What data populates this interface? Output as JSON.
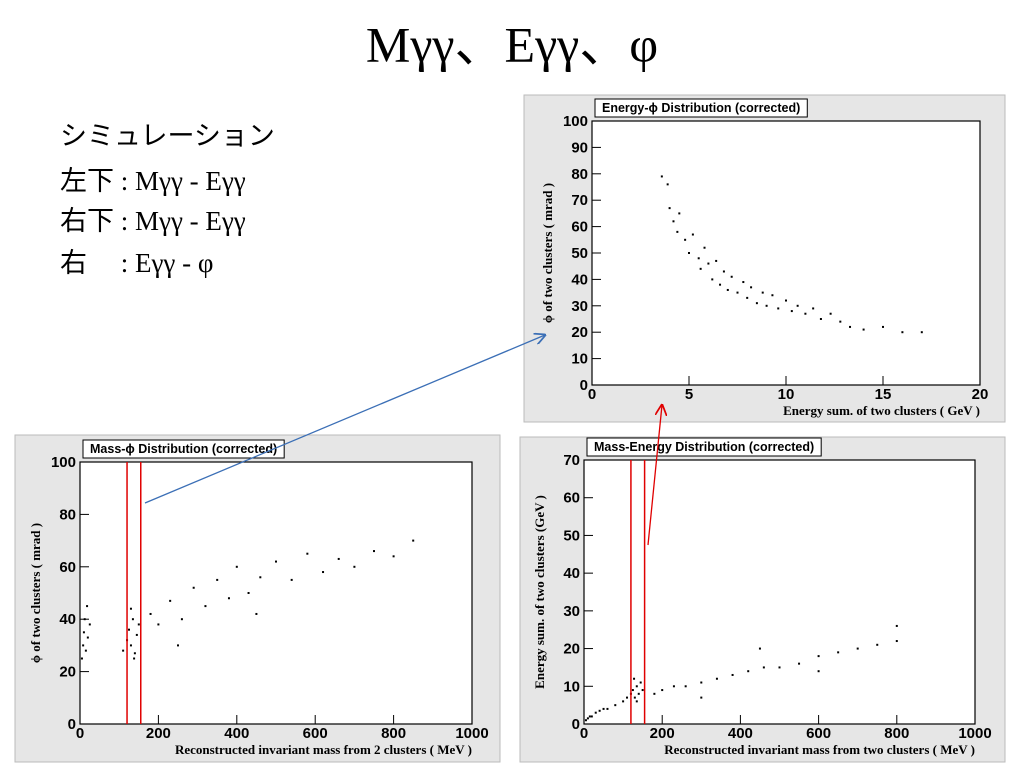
{
  "slide": {
    "title": "Mγγ、Eγγ、φ",
    "notes": [
      "シミュレーション",
      "左下 : Mγγ - Eγγ",
      "右下 : Mγγ - Eγγ",
      "右　 : Eγγ - φ"
    ]
  },
  "chart_data": [
    {
      "type": "scatter",
      "title": "Energy-ϕ Distribution (corrected)",
      "xlabel": "Energy sum. of two clusters ( GeV )",
      "ylabel": "ϕ of two clusters ( mrad )",
      "xlim": [
        0,
        20
      ],
      "xticks": [
        0,
        5,
        10,
        15,
        20
      ],
      "ylim": [
        0,
        100
      ],
      "yticks": [
        0,
        10,
        20,
        30,
        40,
        50,
        60,
        70,
        80,
        90,
        100
      ],
      "color": "#000000",
      "x": [
        3.6,
        3.9,
        4.0,
        4.2,
        4.4,
        4.5,
        4.8,
        5.0,
        5.2,
        5.5,
        5.6,
        5.8,
        6.0,
        6.2,
        6.4,
        6.6,
        6.8,
        7.0,
        7.2,
        7.5,
        7.8,
        8.0,
        8.2,
        8.5,
        8.8,
        9.0,
        9.3,
        9.6,
        10.0,
        10.3,
        10.6,
        11.0,
        11.4,
        11.8,
        12.3,
        12.8,
        13.3,
        14.0,
        15.0,
        16.0,
        17.0
      ],
      "values": [
        79,
        76,
        67,
        62,
        58,
        65,
        55,
        50,
        57,
        48,
        44,
        52,
        46,
        40,
        47,
        38,
        43,
        36,
        41,
        35,
        39,
        33,
        37,
        31,
        35,
        30,
        34,
        29,
        32,
        28,
        30,
        27,
        29,
        25,
        27,
        24,
        22,
        21,
        22,
        20,
        20
      ]
    },
    {
      "type": "scatter",
      "title": "Mass-ϕ Distribution (corrected)",
      "xlabel": "Reconstructed invariant mass from 2 clusters ( MeV )",
      "ylabel": "ϕ of two clusters ( mrad )",
      "xlim": [
        0,
        1000
      ],
      "xticks": [
        0,
        200,
        400,
        600,
        800,
        1000
      ],
      "ylim": [
        0,
        100
      ],
      "yticks": [
        0,
        20,
        40,
        60,
        80,
        100
      ],
      "color": "#000000",
      "vlines": [
        120,
        155
      ],
      "vline_color": "#e00000",
      "x": [
        5,
        8,
        10,
        12,
        15,
        18,
        20,
        25,
        110,
        120,
        125,
        130,
        135,
        140,
        145,
        150,
        130,
        138,
        180,
        200,
        230,
        260,
        290,
        320,
        350,
        380,
        400,
        430,
        460,
        500,
        540,
        580,
        620,
        660,
        700,
        750,
        800,
        850,
        250,
        450
      ],
      "values": [
        25,
        30,
        35,
        40,
        28,
        45,
        33,
        38,
        28,
        32,
        36,
        30,
        40,
        27,
        34,
        38,
        44,
        25,
        42,
        38,
        47,
        40,
        52,
        45,
        55,
        48,
        60,
        50,
        56,
        62,
        55,
        65,
        58,
        63,
        60,
        66,
        64,
        70,
        30,
        42
      ]
    },
    {
      "type": "scatter",
      "title": "Mass-Energy Distribution (corrected)",
      "xlabel": "Reconstructed invariant mass from two clusters ( MeV )",
      "ylabel": "Energy sum. of two clusters (GeV )",
      "xlim": [
        0,
        1000
      ],
      "xticks": [
        0,
        200,
        400,
        600,
        800,
        1000
      ],
      "ylim": [
        0,
        70
      ],
      "yticks": [
        0,
        10,
        20,
        30,
        40,
        50,
        60,
        70
      ],
      "color": "#000000",
      "vlines": [
        120,
        155
      ],
      "vline_color": "#e00000",
      "x": [
        5,
        10,
        15,
        20,
        30,
        40,
        50,
        60,
        80,
        100,
        110,
        120,
        125,
        130,
        135,
        140,
        145,
        150,
        135,
        128,
        180,
        200,
        230,
        260,
        300,
        340,
        380,
        420,
        460,
        500,
        550,
        600,
        650,
        700,
        750,
        800,
        300,
        450,
        600,
        800
      ],
      "values": [
        1,
        1.5,
        2,
        2,
        3,
        3.5,
        4,
        4,
        5,
        6,
        7,
        8,
        9,
        7,
        10,
        8,
        11,
        9,
        6,
        12,
        8,
        9,
        10,
        10,
        11,
        12,
        13,
        14,
        15,
        15,
        16,
        18,
        19,
        20,
        21,
        22,
        7,
        20,
        14,
        26
      ]
    }
  ]
}
